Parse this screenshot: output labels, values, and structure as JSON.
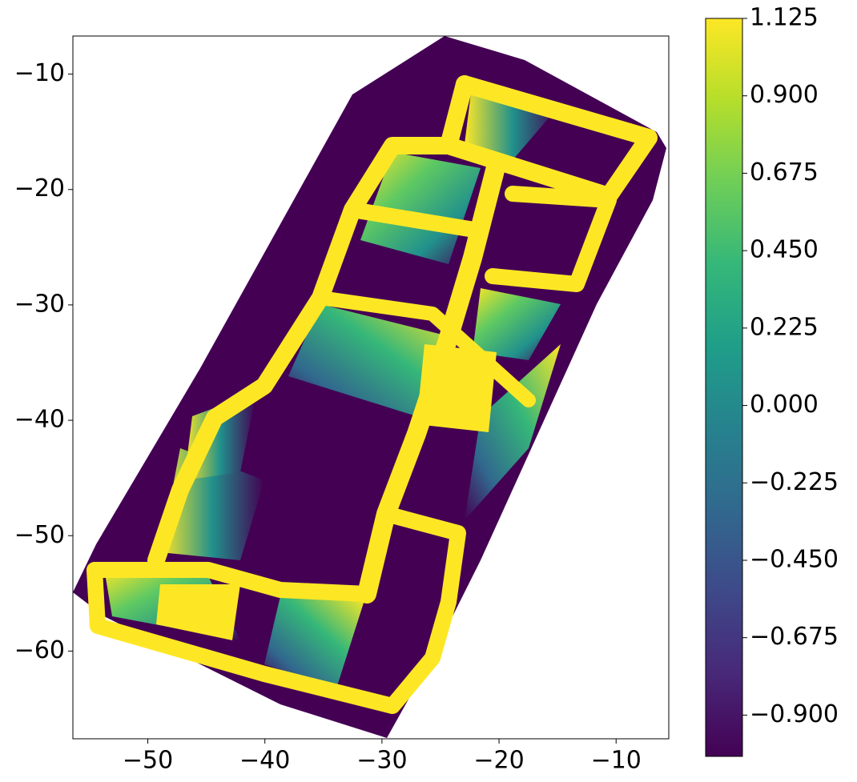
{
  "chart_data": {
    "type": "heatmap",
    "colormap": "viridis",
    "xlim": [
      -56.4,
      -5.5
    ],
    "ylim": [
      -67.6,
      -6.7
    ],
    "xticks": [
      {
        "value": -50,
        "label": "−50"
      },
      {
        "value": -40,
        "label": "−40"
      },
      {
        "value": -30,
        "label": "−30"
      },
      {
        "value": -20,
        "label": "−20"
      },
      {
        "value": -10,
        "label": "−10"
      }
    ],
    "yticks": [
      {
        "value": -10,
        "label": "−10"
      },
      {
        "value": -20,
        "label": "−20"
      },
      {
        "value": -30,
        "label": "−30"
      },
      {
        "value": -40,
        "label": "−40"
      },
      {
        "value": -50,
        "label": "−50"
      },
      {
        "value": -60,
        "label": "−60"
      }
    ],
    "colorbar": {
      "lim": [
        -1.02,
        1.125
      ],
      "ticks": [
        {
          "value": 1.125,
          "label": "1.125"
        },
        {
          "value": 0.9,
          "label": "0.900"
        },
        {
          "value": 0.675,
          "label": "0.675"
        },
        {
          "value": 0.45,
          "label": "0.450"
        },
        {
          "value": 0.225,
          "label": "0.225"
        },
        {
          "value": 0,
          "label": "0.000"
        },
        {
          "value": -0.225,
          "label": "−0.225"
        },
        {
          "value": -0.45,
          "label": "−0.450"
        },
        {
          "value": -0.675,
          "label": "−0.675"
        },
        {
          "value": -0.9,
          "label": "−0.900"
        }
      ]
    }
  }
}
